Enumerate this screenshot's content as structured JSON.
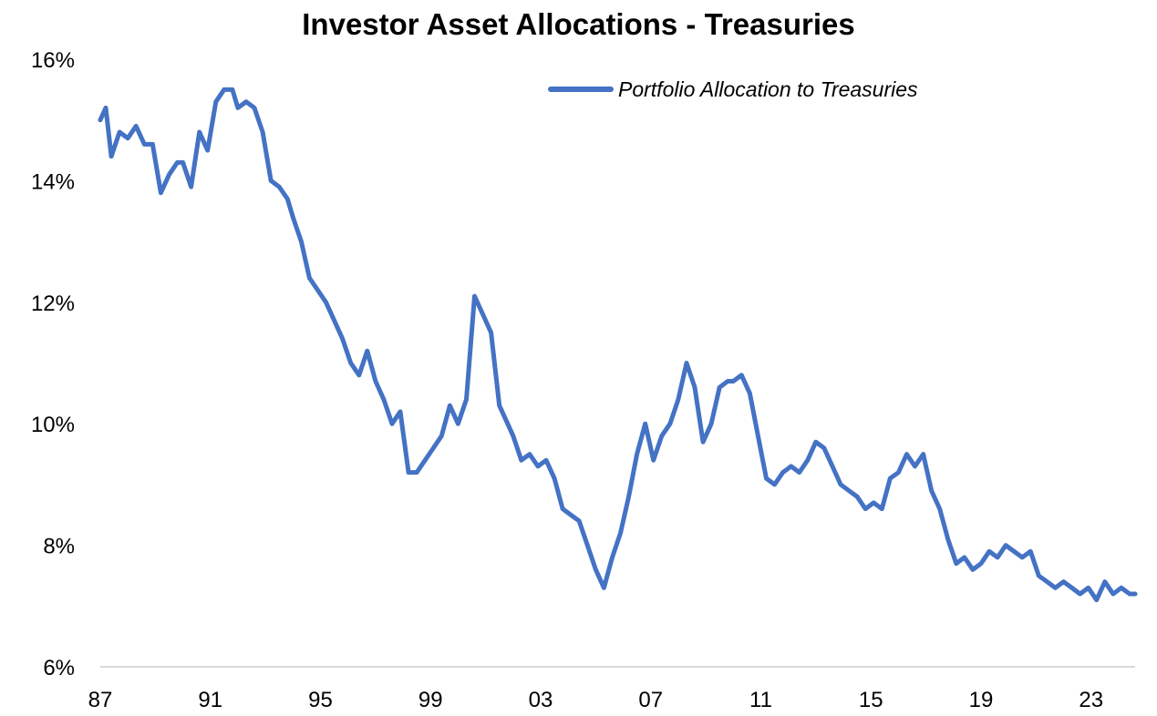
{
  "chart_data": {
    "type": "line",
    "title": "Investor Asset Allocations - Treasuries",
    "xlabel": "",
    "ylabel": "",
    "x_tick_labels": [
      "87",
      "91",
      "95",
      "99",
      "03",
      "07",
      "11",
      "15",
      "19",
      "23"
    ],
    "y_tick_labels": [
      "6%",
      "8%",
      "10%",
      "12%",
      "14%",
      "16%"
    ],
    "xlim": [
      1987.0,
      2024.6
    ],
    "ylim": [
      6,
      16
    ],
    "grid": false,
    "legend": "top-right",
    "colors": {
      "series": "#4472c4",
      "axis": "#d9d9d9"
    },
    "series": [
      {
        "name": "Portfolio Allocation to Treasuries",
        "x": [
          1987.0,
          1987.2,
          1987.4,
          1987.7,
          1988.0,
          1988.3,
          1988.6,
          1988.9,
          1989.2,
          1989.5,
          1989.8,
          1990.0,
          1990.3,
          1990.6,
          1990.9,
          1991.2,
          1991.5,
          1991.8,
          1992.0,
          1992.3,
          1992.6,
          1992.9,
          1993.2,
          1993.5,
          1993.8,
          1994.0,
          1994.3,
          1994.6,
          1994.9,
          1995.2,
          1995.5,
          1995.8,
          1996.1,
          1996.4,
          1996.7,
          1997.0,
          1997.3,
          1997.6,
          1997.9,
          1998.2,
          1998.5,
          1998.8,
          1999.1,
          1999.4,
          1999.7,
          2000.0,
          2000.3,
          2000.6,
          2000.9,
          2001.2,
          2001.5,
          2001.8,
          2002.0,
          2002.3,
          2002.6,
          2002.9,
          2003.2,
          2003.5,
          2003.8,
          2004.1,
          2004.4,
          2004.7,
          2005.0,
          2005.3,
          2005.6,
          2005.9,
          2006.2,
          2006.5,
          2006.8,
          2007.1,
          2007.4,
          2007.7,
          2008.0,
          2008.3,
          2008.6,
          2008.9,
          2009.2,
          2009.5,
          2009.8,
          2010.0,
          2010.3,
          2010.6,
          2010.9,
          2011.2,
          2011.5,
          2011.8,
          2012.1,
          2012.4,
          2012.7,
          2013.0,
          2013.3,
          2013.6,
          2013.9,
          2014.2,
          2014.5,
          2014.8,
          2015.1,
          2015.4,
          2015.7,
          2016.0,
          2016.3,
          2016.6,
          2016.9,
          2017.2,
          2017.5,
          2017.8,
          2018.1,
          2018.4,
          2018.7,
          2019.0,
          2019.3,
          2019.6,
          2019.9,
          2020.2,
          2020.5,
          2020.8,
          2021.1,
          2021.4,
          2021.7,
          2022.0,
          2022.3,
          2022.6,
          2022.9,
          2023.2,
          2023.5,
          2023.8,
          2024.1,
          2024.4,
          2024.6
        ],
        "values": [
          15.0,
          15.2,
          14.4,
          14.8,
          14.7,
          14.9,
          14.6,
          14.6,
          13.8,
          14.1,
          14.3,
          14.3,
          13.9,
          14.8,
          14.5,
          15.3,
          15.5,
          15.5,
          15.2,
          15.3,
          15.2,
          14.8,
          14.0,
          13.9,
          13.7,
          13.4,
          13.0,
          12.4,
          12.2,
          12.0,
          11.7,
          11.4,
          11.0,
          10.8,
          11.2,
          10.7,
          10.4,
          10.0,
          10.2,
          9.2,
          9.2,
          9.4,
          9.6,
          9.8,
          10.3,
          10.0,
          10.4,
          12.1,
          11.8,
          11.5,
          10.3,
          10.0,
          9.8,
          9.4,
          9.5,
          9.3,
          9.4,
          9.1,
          8.6,
          8.5,
          8.4,
          8.0,
          7.6,
          7.3,
          7.8,
          8.2,
          8.8,
          9.5,
          10.0,
          9.4,
          9.8,
          10.0,
          10.4,
          11.0,
          10.6,
          9.7,
          10.0,
          10.6,
          10.7,
          10.7,
          10.8,
          10.5,
          9.8,
          9.1,
          9.0,
          9.2,
          9.3,
          9.2,
          9.4,
          9.7,
          9.6,
          9.3,
          9.0,
          8.9,
          8.8,
          8.6,
          8.7,
          8.6,
          9.1,
          9.2,
          9.5,
          9.3,
          9.5,
          8.9,
          8.6,
          8.1,
          7.7,
          7.8,
          7.6,
          7.7,
          7.9,
          7.8,
          8.0,
          7.9,
          7.8,
          7.9,
          7.5,
          7.4,
          7.3,
          7.4,
          7.3,
          7.2,
          7.3,
          7.1,
          7.4,
          7.2,
          7.3,
          7.2,
          7.2
        ]
      }
    ]
  }
}
